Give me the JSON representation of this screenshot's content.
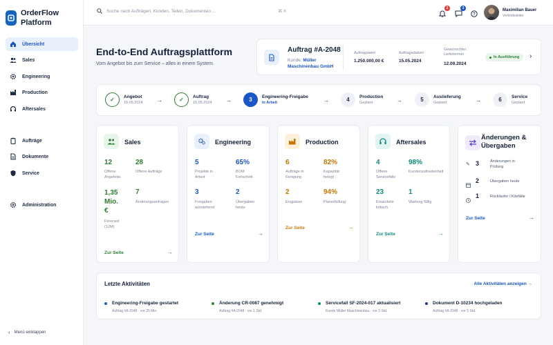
{
  "app": {
    "name": "OrderFlow Platform"
  },
  "sidebar": {
    "items": [
      {
        "label": "Übersicht",
        "icon": "home-icon"
      },
      {
        "label": "Sales",
        "icon": "users-icon"
      },
      {
        "label": "Engineering",
        "icon": "gear-icon"
      },
      {
        "label": "Production",
        "icon": "factory-icon"
      },
      {
        "label": "Aftersales",
        "icon": "headset-icon"
      },
      {
        "label": "Aufträge",
        "icon": "clipboard-icon"
      },
      {
        "label": "Dokumente",
        "icon": "document-icon"
      },
      {
        "label": "Service",
        "icon": "shield-icon"
      },
      {
        "label": "Administration",
        "icon": "gear-icon"
      }
    ],
    "collapse_label": "Menü einklappen"
  },
  "topbar": {
    "search_placeholder": "Suche nach Aufträgen, Kunden, Teilen, Dokumenten ...",
    "shortcut": "⌘ K",
    "notifications_count": "2",
    "messages_count": "3",
    "user_name": "Maximilian Bauer",
    "user_role": "Vertriebsleiter"
  },
  "hero": {
    "title": "End-to-End Auftragsplattform",
    "subtitle": "Vom Angebot bis zum Service – alles in einem System."
  },
  "order": {
    "title": "Auftrag #A-2048",
    "customer_label": "Kunde:",
    "customer_line1": "Müller",
    "customer_line2": "Maschinenbau GmbH",
    "value_label": "Auftragswert",
    "value": "1.250.000,00 €",
    "date_label": "Auftragsdatum",
    "date": "15.05.2024",
    "delivery_label_1": "Gewünschter",
    "delivery_label_2": "Liefertermin",
    "delivery": "12.09.2024",
    "status": "In Ausführung"
  },
  "steps": [
    {
      "name": "Angebot",
      "state": "10.05.2024",
      "marker": "✓",
      "status": "done"
    },
    {
      "name": "Auftrag",
      "state": "15.05.2024",
      "marker": "✓",
      "status": "done"
    },
    {
      "name": "Engineering-Freigabe",
      "state": "In Arbeit",
      "marker": "3",
      "status": "active"
    },
    {
      "name": "Production",
      "state": "Geplant",
      "marker": "4",
      "status": "planned"
    },
    {
      "name": "Auslieferung",
      "state": "Geplant",
      "marker": "5",
      "status": "planned"
    },
    {
      "name": "Service",
      "state": "Geplant",
      "marker": "6",
      "status": "planned"
    }
  ],
  "modules": {
    "sales": {
      "title": "Sales",
      "color": "#2e7d32",
      "m1_value": "12",
      "m1_label_1": "Offene",
      "m1_label_2": "Angebote",
      "m2_value": "28",
      "m2_label": "Offene Aufträge",
      "m3_value_1": "1,35",
      "m3_value_2": "Mio.",
      "m3_value_3": "€",
      "m3_label_1": "Forecast",
      "m3_label_2": "(12M)",
      "m4_value": "7",
      "m4_label": "Änderungsanfragen",
      "link": "Zur Seite"
    },
    "engineering": {
      "title": "Engineering",
      "color": "#1a56c7",
      "m1_value": "5",
      "m1_label_1": "Projekte in",
      "m1_label_2": "Arbeit",
      "m2_value": "65%",
      "m2_label_1": "BOM",
      "m2_label_2": "Fortschritt",
      "m3_value": "3",
      "m3_label_1": "Freigaben",
      "m3_label_2": "ausstehend",
      "m4_value": "2",
      "m4_label_1": "Übergaben",
      "m4_label_2": "heute",
      "link": "Zur Seite"
    },
    "production": {
      "title": "Production",
      "color": "#c77700",
      "m1_value": "6",
      "m1_label_1": "Aufträge in",
      "m1_label_2": "Fertigung",
      "m2_value": "82%",
      "m2_label_1": "Kapazität",
      "m2_label_2": "belegt",
      "m3_value": "2",
      "m3_label": "Engpässe",
      "m4_value": "94%",
      "m4_label": "Planerfüllung",
      "link": "Zur Seite"
    },
    "aftersales": {
      "title": "Aftersales",
      "color": "#0f8a7e",
      "m1_value": "4",
      "m1_label_1": "Offene",
      "m1_label_2": "Servicefälle",
      "m2_value": "98%",
      "m2_label": "Kundenzufriedenheit",
      "m3_value": "23",
      "m3_label_1": "Ersatzteile",
      "m3_label_2": "kritisch",
      "m4_value": "1",
      "m4_label": "Wartung fällig",
      "link": "Zur Seite"
    },
    "changes": {
      "title_1": "Änderungen &",
      "title_2": "Übergaben",
      "r1_value": "3",
      "r1_label_1": "Änderungen in",
      "r1_label_2": "Prüfung",
      "r2_value": "2",
      "r2_label": "Übergaben heute",
      "r3_value": "1",
      "r3_label": "Rückläufer / Klärfälle",
      "link": "Zur Seite"
    }
  },
  "activities": {
    "title": "Letzte Aktivitäten",
    "all_link": "Alle Aktivitäten anzeigen →",
    "items": [
      {
        "title": "Engineering-Freigabe gestartet",
        "sub": "Auftrag #A-2048 · vor 25 Min.",
        "color": "#1a56c7"
      },
      {
        "title": "Änderung CR-0087 genehmigt",
        "sub": "Auftrag #A-2048 · vor 1 Std.",
        "color": "#2e7d32"
      },
      {
        "title": "Servicefall SF-2024-017 aktualisiert",
        "sub": "Kunde Müller Maschinenbau · vor 3 Std.",
        "color": "#0f8a7e"
      },
      {
        "title": "Dokument D-10234 hochgeladen",
        "sub": "Auftrag #A-2048 · vor 5 Std.",
        "color": "#1a3a8a"
      }
    ]
  }
}
